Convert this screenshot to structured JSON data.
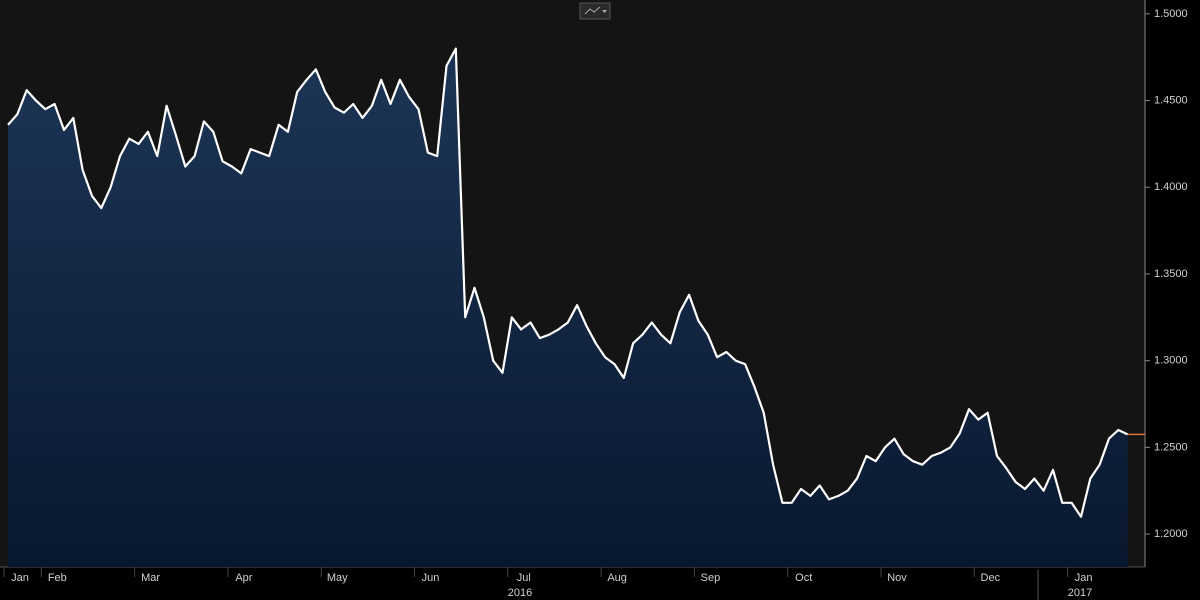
{
  "chart_data": {
    "type": "area",
    "categories": [
      "Jan",
      null,
      null,
      null,
      "Feb",
      null,
      null,
      null,
      null,
      null,
      null,
      null,
      null,
      null,
      "Mar",
      null,
      null,
      null,
      null,
      null,
      null,
      null,
      null,
      null,
      "Apr",
      null,
      null,
      null,
      null,
      null,
      null,
      null,
      null,
      null,
      "May",
      null,
      null,
      null,
      null,
      null,
      null,
      null,
      null,
      null,
      "Jun",
      null,
      null,
      null,
      null,
      null,
      null,
      null,
      null,
      null,
      "Jul",
      null,
      null,
      null,
      null,
      null,
      null,
      null,
      null,
      null,
      "Aug",
      null,
      null,
      null,
      null,
      null,
      null,
      null,
      null,
      null,
      "Sep",
      null,
      null,
      null,
      null,
      null,
      null,
      null,
      null,
      null,
      "Oct",
      null,
      null,
      null,
      null,
      null,
      null,
      null,
      null,
      null,
      "Nov",
      null,
      null,
      null,
      null,
      null,
      null,
      null,
      null,
      null,
      "Dec",
      null,
      null,
      null,
      null,
      null,
      null,
      null,
      null,
      null,
      "Jan",
      null,
      null,
      null,
      null,
      null,
      null
    ],
    "values": [
      1.436,
      1.442,
      1.456,
      1.45,
      1.445,
      1.448,
      1.433,
      1.44,
      1.41,
      1.395,
      1.388,
      1.4,
      1.418,
      1.428,
      1.425,
      1.432,
      1.418,
      1.447,
      1.43,
      1.412,
      1.418,
      1.438,
      1.432,
      1.415,
      1.412,
      1.408,
      1.422,
      1.42,
      1.418,
      1.436,
      1.432,
      1.455,
      1.462,
      1.468,
      1.455,
      1.446,
      1.443,
      1.448,
      1.44,
      1.447,
      1.462,
      1.448,
      1.462,
      1.452,
      1.445,
      1.42,
      1.418,
      1.47,
      1.48,
      1.325,
      1.342,
      1.325,
      1.3,
      1.293,
      1.325,
      1.318,
      1.322,
      1.313,
      1.315,
      1.318,
      1.322,
      1.332,
      1.32,
      1.31,
      1.302,
      1.298,
      1.29,
      1.31,
      1.315,
      1.322,
      1.315,
      1.31,
      1.328,
      1.338,
      1.323,
      1.315,
      1.302,
      1.305,
      1.3,
      1.298,
      1.285,
      1.27,
      1.24,
      1.218,
      1.218,
      1.226,
      1.222,
      1.228,
      1.22,
      1.222,
      1.225,
      1.232,
      1.245,
      1.242,
      1.25,
      1.255,
      1.246,
      1.242,
      1.24,
      1.245,
      1.247,
      1.25,
      1.258,
      1.272,
      1.266,
      1.27,
      1.245,
      1.238,
      1.23,
      1.226,
      1.232,
      1.225,
      1.237,
      1.218,
      1.218,
      1.21,
      1.232,
      1.24,
      1.255,
      1.26,
      1.2575
    ],
    "x_group_labels": [
      "2016",
      "2017"
    ],
    "ylim": [
      1.181,
      1.508
    ],
    "yticks": [
      {
        "value": 1.2,
        "label": "1.2000"
      },
      {
        "value": 1.25,
        "label": "1.2500"
      },
      {
        "value": 1.3,
        "label": "1.3000"
      },
      {
        "value": 1.35,
        "label": "1.3500"
      },
      {
        "value": 1.4,
        "label": "1.4000"
      },
      {
        "value": 1.45,
        "label": "1.4500"
      },
      {
        "value": 1.5,
        "label": "1.5000"
      }
    ],
    "color": "#ffffff"
  }
}
